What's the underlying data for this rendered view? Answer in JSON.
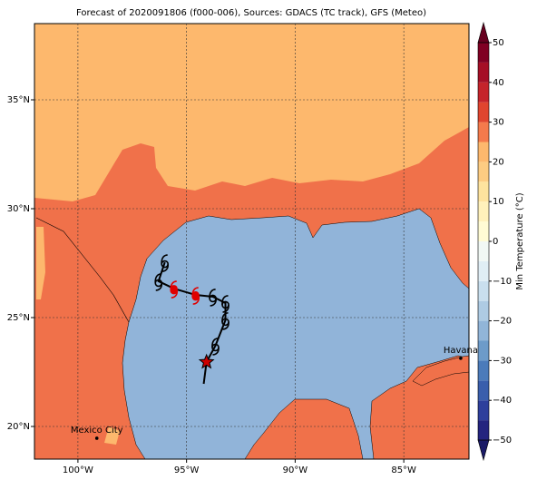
{
  "map": {
    "title": "Forecast of 2020091806 (f000-006), Sources: GDACS (TC track), GFS (Meteo)",
    "lon_range": [
      -102,
      -82
    ],
    "lat_range": [
      18.5,
      38.5
    ],
    "lon_ticks": [
      {
        "value": -100,
        "label": "100°W"
      },
      {
        "value": -95,
        "label": "95°W"
      },
      {
        "value": -90,
        "label": "90°W"
      },
      {
        "value": -85,
        "label": "85°W"
      }
    ],
    "lat_ticks": [
      {
        "value": 20,
        "label": "20°N"
      },
      {
        "value": 25,
        "label": "25°N"
      },
      {
        "value": 30,
        "label": "30°N"
      },
      {
        "value": 35,
        "label": "35°N"
      }
    ],
    "grid": true,
    "cities": [
      {
        "name": "Mexico City",
        "lon": -99.13,
        "lat": 19.46
      },
      {
        "name": "Havana",
        "lon": -82.38,
        "lat": 23.13
      }
    ],
    "track": [
      {
        "lon": -94.21,
        "lat": 21.96,
        "marker": "none",
        "color": "#000000"
      },
      {
        "lon": -94.08,
        "lat": 22.96,
        "marker": "star",
        "color": "#cc0000"
      },
      {
        "lon": -93.67,
        "lat": 23.71,
        "marker": "storm",
        "color": "#000000"
      },
      {
        "lon": -93.21,
        "lat": 24.88,
        "marker": "storm",
        "color": "#000000"
      },
      {
        "lon": -93.21,
        "lat": 25.67,
        "marker": "storm",
        "color": "#000000"
      },
      {
        "lon": -93.79,
        "lat": 25.96,
        "marker": "storm",
        "color": "#000000"
      },
      {
        "lon": -94.58,
        "lat": 26.04,
        "marker": "current",
        "color": "#e00000"
      },
      {
        "lon": -95.58,
        "lat": 26.33,
        "marker": "current",
        "color": "#e00000"
      },
      {
        "lon": -96.29,
        "lat": 26.67,
        "marker": "storm",
        "color": "#000000"
      },
      {
        "lon": -96.0,
        "lat": 27.54,
        "marker": "storm",
        "color": "#000000"
      }
    ],
    "colorbar": {
      "label": "Min Temperature (°C)",
      "range": [
        -50,
        50
      ],
      "band_width": 5,
      "ticks": [
        {
          "value": -50,
          "label": "−50"
        },
        {
          "value": -40,
          "label": "−40"
        },
        {
          "value": -30,
          "label": "−30"
        },
        {
          "value": -20,
          "label": "−20"
        },
        {
          "value": -10,
          "label": "−10"
        },
        0,
        10,
        20,
        30,
        40,
        50
      ],
      "colors": [
        "#24247f",
        "#2e3f9c",
        "#3a5eac",
        "#4b7bba",
        "#6d9bc9",
        "#91b5d8",
        "#aecbe3",
        "#c9dfee",
        "#e0eef5",
        "#f1f8f4",
        "#fffbd4",
        "#fff1bb",
        "#fee39e",
        "#fdcc82",
        "#fdb86d",
        "#f47a4c",
        "#e0452f",
        "#c5242b",
        "#a50f26",
        "#800023"
      ],
      "under_color": "#1a1a66",
      "over_color": "#67001f"
    }
  }
}
